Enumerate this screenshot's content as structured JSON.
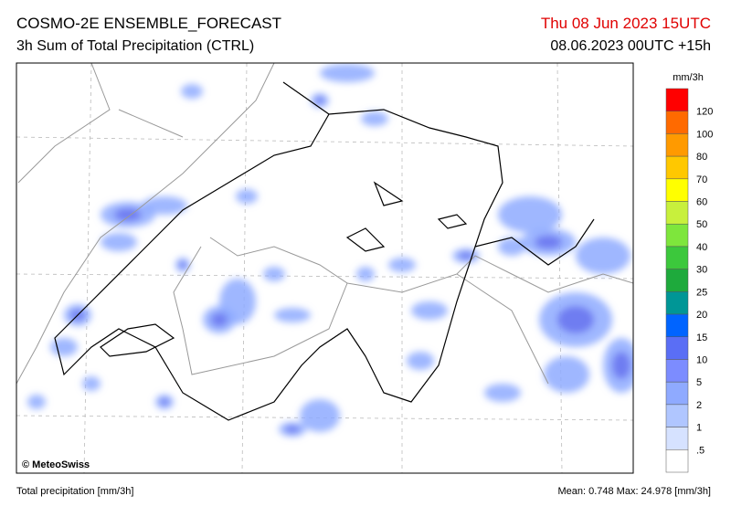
{
  "header": {
    "title": "COSMO-2E ENSEMBLE_FORECAST",
    "subtitle": "3h Sum of Total Precipitation (CTRL)",
    "valid_time": "Thu 08 Jun 2023 15UTC",
    "run": "08.06.2023 00UTC +15h"
  },
  "map": {
    "credit": "© MeteoSwiss"
  },
  "legend": {
    "unit": "mm/3h",
    "labels": [
      "120",
      "100",
      "80",
      "70",
      "60",
      "50",
      "40",
      "30",
      "25",
      "20",
      "15",
      "10",
      "5",
      "2",
      "1",
      ".5"
    ],
    "colors": [
      "#ff0000",
      "#ff6a00",
      "#ff9a00",
      "#ffc800",
      "#ffff00",
      "#c8f03c",
      "#7ee63c",
      "#3cc83c",
      "#1eaa3c",
      "#009696",
      "#0064ff",
      "#5a6ef5",
      "#7c8cff",
      "#8faaff",
      "#b0c6ff",
      "#d6e2ff",
      "#ffffff"
    ]
  },
  "footer": {
    "left": "Total precipitation [mm/3h]",
    "stats": "Mean:  0.748 Max: 24.978 [mm/3h]"
  }
}
